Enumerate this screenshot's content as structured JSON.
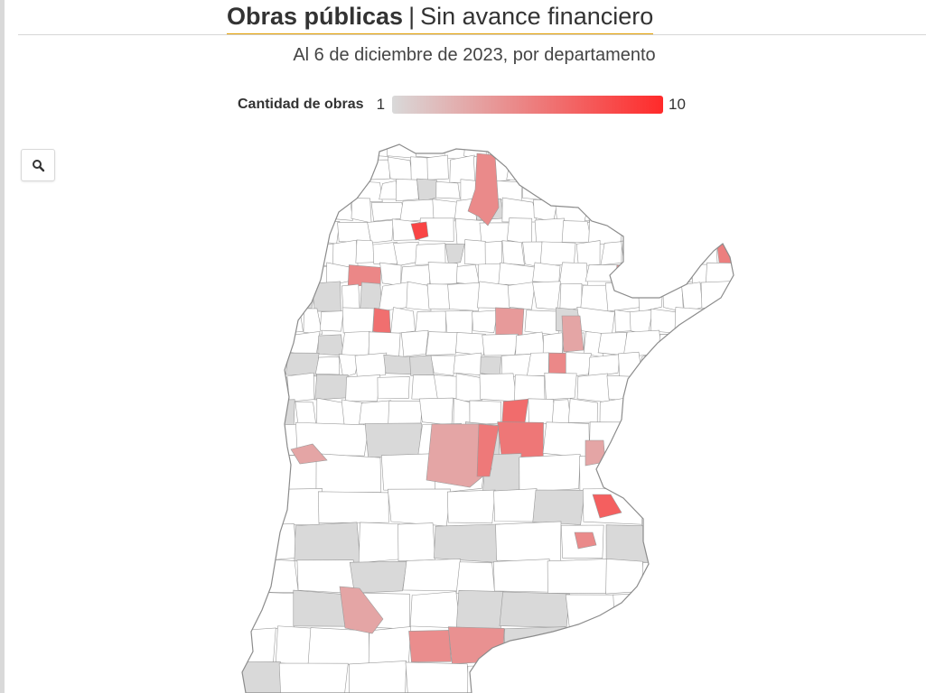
{
  "header": {
    "title_bold": "Obras públicas",
    "title_separator": "|",
    "title_rest": "Sin avance financiero",
    "subtitle": "Al 6 de diciembre de 2023, por departamento",
    "accent_color": "#e5a000"
  },
  "legend": {
    "title": "Cantidad de obras",
    "min": "1",
    "max": "10",
    "color_min": "#d9d9d9",
    "color_max": "#ff2a2a"
  },
  "controls": {
    "zoom_icon": "search-icon"
  },
  "map": {
    "no_data_fill": "#ffffff",
    "one_work_fill": "#d9d9d9",
    "border_color": "#9a9a9a"
  }
}
